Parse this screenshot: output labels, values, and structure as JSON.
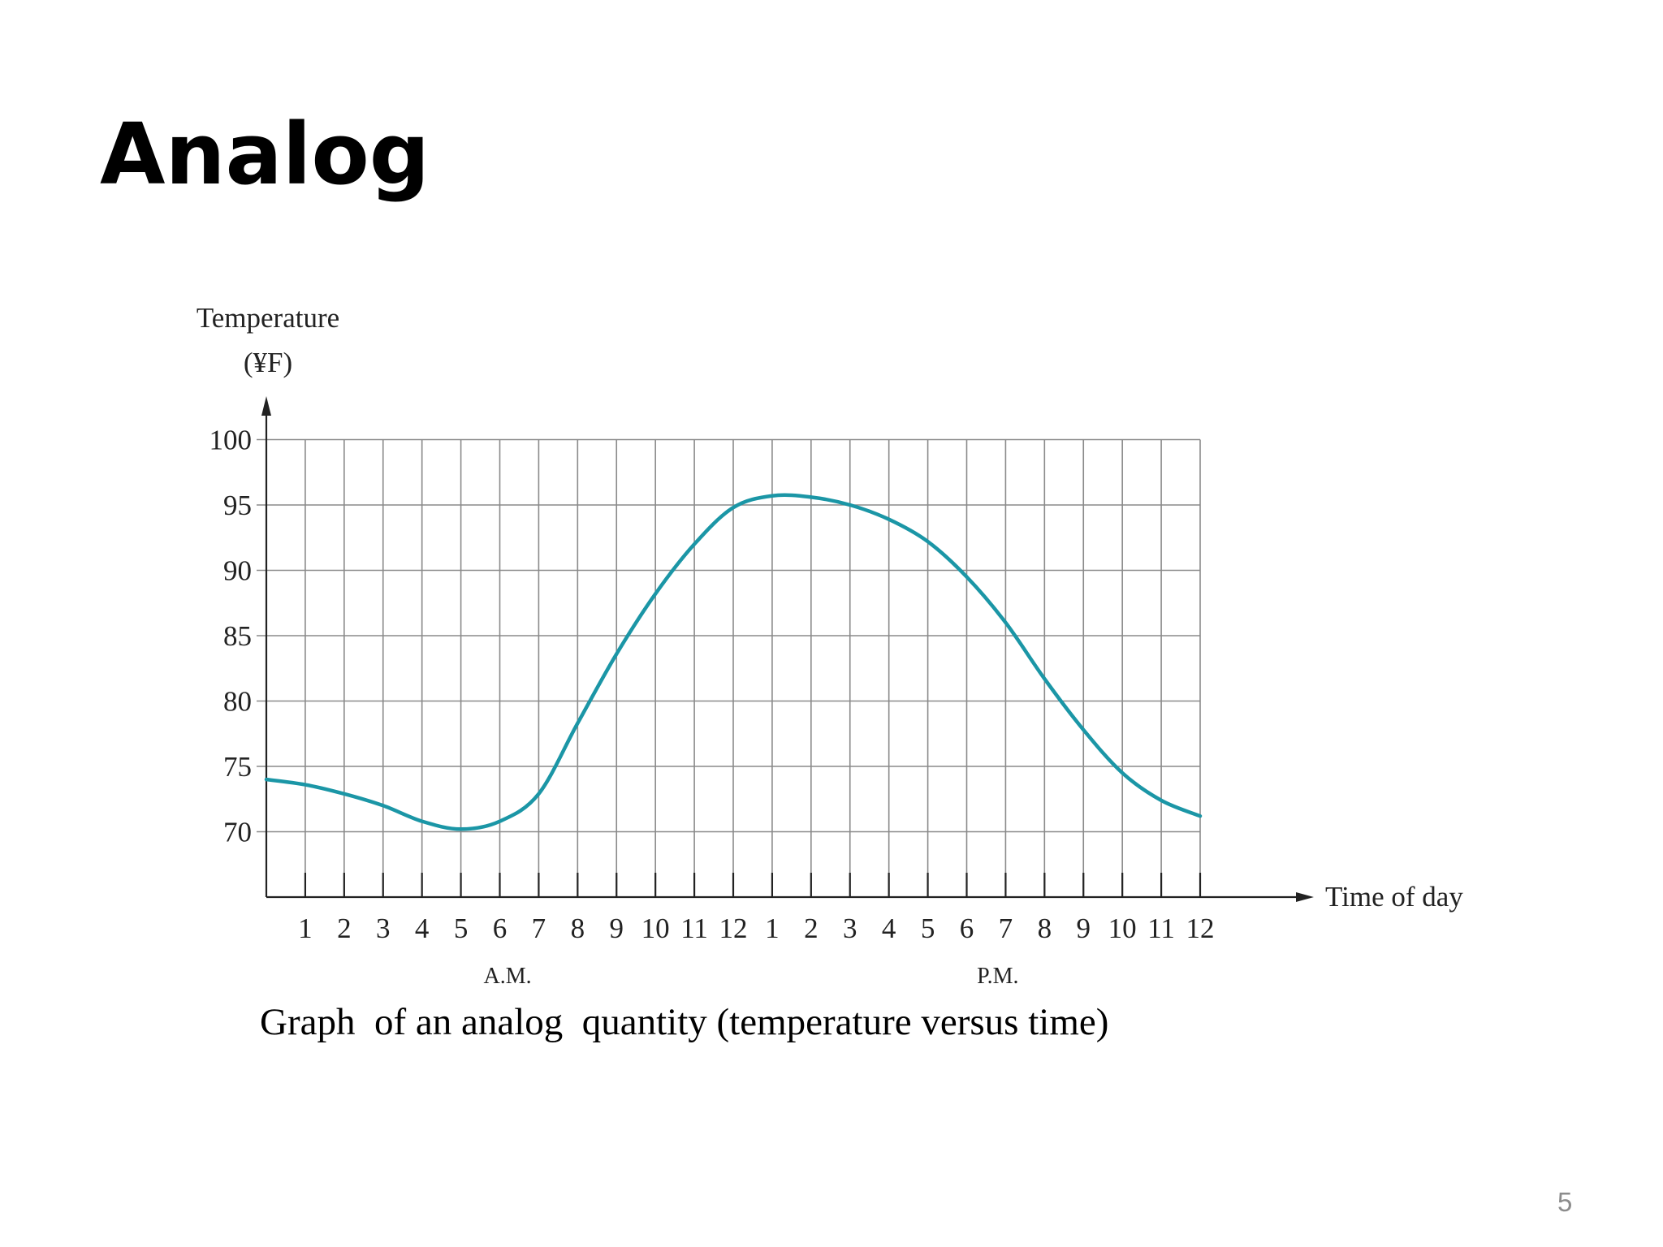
{
  "slide": {
    "title": "Analog",
    "caption": "Graph  of an analog  quantity (temperature versus time)",
    "page_number": "5"
  },
  "chart_data": {
    "type": "line",
    "ylabel_line1": "Temperature",
    "ylabel_line2": "(¥F)",
    "xlabel": "Time of day",
    "x_tick_labels": [
      "1",
      "2",
      "3",
      "4",
      "5",
      "6",
      "7",
      "8",
      "9",
      "10",
      "11",
      "12",
      "1",
      "2",
      "3",
      "4",
      "5",
      "6",
      "7",
      "8",
      "9",
      "10",
      "11",
      "12"
    ],
    "period_labels": [
      "A.M.",
      "P.M."
    ],
    "y_ticks": [
      70,
      75,
      80,
      85,
      90,
      95,
      100
    ],
    "ylim": [
      65,
      100
    ],
    "xlim": [
      0,
      24
    ],
    "line_color": "#1b96a6",
    "grid": true,
    "x": [
      0,
      1,
      2,
      3,
      4,
      5,
      6,
      7,
      8,
      9,
      10,
      11,
      12,
      13,
      14,
      15,
      16,
      17,
      18,
      19,
      20,
      21,
      22,
      23,
      24
    ],
    "values": [
      74,
      73.6,
      72.9,
      72,
      70.8,
      70.2,
      70.8,
      72.9,
      78.3,
      83.6,
      88.2,
      92,
      94.8,
      95.7,
      95.6,
      95,
      93.9,
      92.2,
      89.5,
      86,
      81.7,
      77.8,
      74.5,
      72.4,
      71.2
    ]
  }
}
